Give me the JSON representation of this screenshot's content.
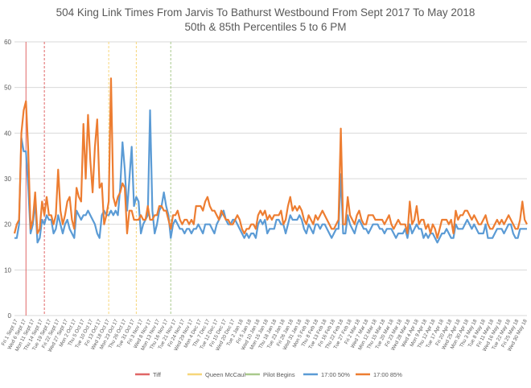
{
  "chart_data": {
    "type": "line",
    "title_line1": "504 King Link Times From Jarvis To Bathurst Westbound From Sept 2017 To May 2018",
    "title_line2": "50th & 85th Percentiles 5 to 6 PM",
    "ylim": [
      0,
      60
    ],
    "yticks": [
      0,
      10,
      20,
      30,
      40,
      50,
      60
    ],
    "grid": true,
    "legend_position": "bottom",
    "x_tick_labels": [
      "Fri 1 Sept 17",
      "Wed 6 Sept 17",
      "Mon 11 Sept 17",
      "Thu 14 Sept 17",
      "Tue 19 Sept 17",
      "Fri 22 Sept 17",
      "Wed 27 Sept 17",
      "Mon 2 Oct 17",
      "Thu 5 Oct 17",
      "Tue 10 Oct 17",
      "Fri 13 Oct 17",
      "Wed 18 Oct 17",
      "Mon 23 Oct 17",
      "Thu 26 Oct 17",
      "Tue 31 Oct 17",
      "Fri 3 Nov 17",
      "Wed 8 Nov 17",
      "Mon 13 Nov 17",
      "Thu 16 Nov 17",
      "Tue 21 Nov 17",
      "Fri 24 Nov 17",
      "Wed 29 Nov 17",
      "Mon 4 Dec 17",
      "Thu 7 Dec 17",
      "Tue 12 Dec 17",
      "Fri 15 Dec 17",
      "Wed 20 Dec 17",
      "Tue 2 Jan 18",
      "Fri 5 Jan 18",
      "Wed 10 Jan 18",
      "Mon 15 Jan 18",
      "Thu 18 Jan 18",
      "Tue 23 Jan 18",
      "Fri 26 Jan 18",
      "Wed 31 Jan 18",
      "Mon 5 Feb 18",
      "Thu 8 Feb 18",
      "Tue 13 Feb 18",
      "Fri 16 Feb 18",
      "Thu 22 Feb 18",
      "Tue 27 Feb 18",
      "Fri 2 Mar 18",
      "Wed 7 Mar 18",
      "Mon 12 Mar 18",
      "Thu 15 Mar 18",
      "Tue 20 Mar 18",
      "Fri 23 Mar 18",
      "Wed 28 Mar 18",
      "Wed 4 Apr 18",
      "Mon 9 Apr 18",
      "Thu 12 Apr 18",
      "Tue 17 Apr 18",
      "Fri 20 Apr 18",
      "Wed 25 Apr 18",
      "Mon 30 Apr 18",
      "Thu 3 May 18",
      "Tue 8 May 18",
      "Fri 11 May 18",
      "Wed 16 May 18",
      "Tue 22 May 18",
      "Fri 25 May 18",
      "Wed 30 May 18"
    ],
    "event_markers": [
      {
        "name": "Tiff",
        "color": "#e06666",
        "x_index": [
          5,
          13
        ]
      },
      {
        "name": "Queen McCaul",
        "color": "#f6d67a",
        "x_index": [
          41,
          53
        ]
      },
      {
        "name": "Pilot Begins",
        "color": "#a9c98c",
        "x_index": [
          68
        ]
      }
    ],
    "series": [
      {
        "name": "17:00 50%",
        "color": "#5b9bd5",
        "values": [
          17,
          17,
          20,
          39,
          36,
          36,
          28,
          18,
          20,
          25,
          16,
          17,
          21,
          20,
          22,
          21,
          21,
          18,
          19,
          22,
          20,
          18,
          20,
          21,
          19,
          18,
          17,
          23,
          22,
          21,
          22,
          22,
          23,
          22,
          21,
          20,
          18,
          17,
          22,
          23,
          22,
          22,
          23,
          22,
          23,
          22,
          28,
          38,
          32,
          23,
          30,
          37,
          24,
          26,
          25,
          18,
          20,
          21,
          22,
          45,
          23,
          18,
          20,
          23,
          24,
          27,
          24,
          22,
          17,
          20,
          21,
          20,
          19,
          19,
          18,
          19,
          19,
          18,
          19,
          19,
          20,
          19,
          18,
          20,
          20,
          20,
          19,
          18,
          20,
          21,
          22,
          23,
          21,
          20,
          20,
          21,
          21,
          20,
          19,
          18,
          17,
          18,
          17,
          18,
          18,
          17,
          20,
          21,
          20,
          21,
          18,
          19,
          19,
          19,
          21,
          21,
          20,
          20,
          18,
          20,
          22,
          21,
          21,
          21,
          22,
          21,
          19,
          18,
          20,
          19,
          18,
          20,
          20,
          19,
          20,
          20,
          19,
          18,
          17,
          18,
          19,
          19,
          31,
          18,
          18,
          22,
          20,
          19,
          18,
          20,
          21,
          20,
          19,
          19,
          18,
          19,
          20,
          20,
          20,
          19,
          19,
          18,
          19,
          19,
          19,
          18,
          17,
          18,
          18,
          18,
          19,
          17,
          20,
          18,
          19,
          20,
          19,
          19,
          17,
          18,
          17,
          18,
          18,
          17,
          16,
          17,
          18,
          18,
          19,
          18,
          17,
          17,
          20,
          19,
          19,
          19,
          20,
          21,
          20,
          19,
          20,
          19,
          18,
          18,
          18,
          20,
          17,
          17,
          17,
          18,
          19,
          19,
          19,
          18,
          19,
          20,
          20,
          18,
          17,
          17,
          19,
          19,
          19,
          19
        ]
      },
      {
        "name": "17:00 85%",
        "color": "#ed7d31",
        "values": [
          18,
          20,
          21,
          40,
          45,
          47,
          36,
          19,
          21,
          27,
          18,
          19,
          25,
          22,
          26,
          22,
          22,
          20,
          22,
          32,
          23,
          20,
          22,
          25,
          26,
          21,
          19,
          28,
          26,
          25,
          42,
          30,
          44,
          34,
          27,
          37,
          43,
          28,
          29,
          20,
          22,
          25,
          52,
          26,
          24,
          26,
          27,
          29,
          28,
          18,
          23,
          23,
          21,
          21,
          21,
          22,
          21,
          21,
          24,
          21,
          21,
          22,
          22,
          24,
          24,
          23,
          23,
          21,
          19,
          22,
          22,
          23,
          21,
          20,
          21,
          21,
          20,
          21,
          20,
          24,
          24,
          24,
          23,
          25,
          26,
          24,
          23,
          23,
          22,
          21,
          23,
          22,
          21,
          21,
          20,
          20,
          21,
          22,
          21,
          19,
          18,
          19,
          19,
          20,
          20,
          19,
          22,
          23,
          22,
          23,
          21,
          22,
          21,
          22,
          22,
          22,
          23,
          20,
          21,
          24,
          26,
          23,
          24,
          23,
          24,
          23,
          21,
          20,
          22,
          21,
          20,
          22,
          21,
          22,
          23,
          22,
          21,
          20,
          19,
          19,
          20,
          21,
          41,
          20,
          20,
          26,
          22,
          21,
          20,
          22,
          23,
          21,
          20,
          20,
          22,
          22,
          22,
          21,
          21,
          21,
          21,
          20,
          21,
          22,
          20,
          19,
          20,
          21,
          20,
          20,
          20,
          18,
          25,
          20,
          21,
          24,
          20,
          21,
          21,
          19,
          20,
          18,
          20,
          19,
          17,
          19,
          21,
          21,
          21,
          20,
          21,
          18,
          23,
          21,
          22,
          22,
          23,
          23,
          22,
          21,
          22,
          21,
          20,
          20,
          21,
          22,
          20,
          19,
          19,
          20,
          21,
          20,
          21,
          20,
          21,
          22,
          21,
          20,
          19,
          19,
          21,
          25,
          21,
          20
        ]
      }
    ]
  }
}
